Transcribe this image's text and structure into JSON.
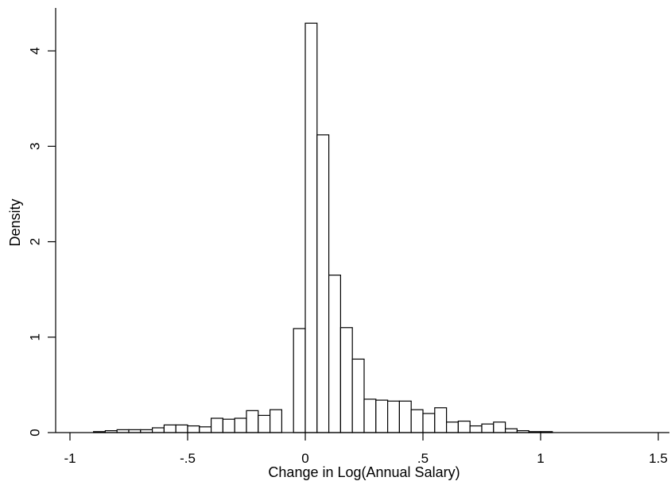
{
  "chart_data": {
    "type": "bar",
    "title": "",
    "xlabel": "Change in Log(Annual Salary)",
    "ylabel": "Density",
    "xlim": [
      -1,
      1.5
    ],
    "ylim": [
      0,
      4.4
    ],
    "grid": false,
    "bin_width": 0.05,
    "x_ticks": [
      {
        "value": -1,
        "label": "-1"
      },
      {
        "value": -0.5,
        "label": "-.5"
      },
      {
        "value": 0,
        "label": "0"
      },
      {
        "value": 0.5,
        "label": ".5"
      },
      {
        "value": 1,
        "label": "1"
      },
      {
        "value": 1.5,
        "label": "1.5"
      }
    ],
    "y_ticks": [
      {
        "value": 0,
        "label": "0"
      },
      {
        "value": 1,
        "label": "1"
      },
      {
        "value": 2,
        "label": "2"
      },
      {
        "value": 3,
        "label": "3"
      },
      {
        "value": 4,
        "label": "4"
      }
    ],
    "bins": [
      {
        "x0": -0.9,
        "x1": -0.85,
        "density": 0.01
      },
      {
        "x0": -0.85,
        "x1": -0.8,
        "density": 0.02
      },
      {
        "x0": -0.8,
        "x1": -0.75,
        "density": 0.03
      },
      {
        "x0": -0.75,
        "x1": -0.7,
        "density": 0.03
      },
      {
        "x0": -0.7,
        "x1": -0.65,
        "density": 0.03
      },
      {
        "x0": -0.65,
        "x1": -0.6,
        "density": 0.05
      },
      {
        "x0": -0.6,
        "x1": -0.55,
        "density": 0.08
      },
      {
        "x0": -0.55,
        "x1": -0.5,
        "density": 0.08
      },
      {
        "x0": -0.5,
        "x1": -0.45,
        "density": 0.07
      },
      {
        "x0": -0.45,
        "x1": -0.4,
        "density": 0.06
      },
      {
        "x0": -0.4,
        "x1": -0.35,
        "density": 0.15
      },
      {
        "x0": -0.35,
        "x1": -0.3,
        "density": 0.14
      },
      {
        "x0": -0.3,
        "x1": -0.25,
        "density": 0.15
      },
      {
        "x0": -0.25,
        "x1": -0.2,
        "density": 0.23
      },
      {
        "x0": -0.2,
        "x1": -0.15,
        "density": 0.18
      },
      {
        "x0": -0.15,
        "x1": -0.1,
        "density": 0.24
      },
      {
        "x0": -0.05,
        "x1": 0.0,
        "density": 1.09
      },
      {
        "x0": 0.0,
        "x1": 0.05,
        "density": 4.29
      },
      {
        "x0": 0.05,
        "x1": 0.1,
        "density": 3.12
      },
      {
        "x0": 0.1,
        "x1": 0.15,
        "density": 1.65
      },
      {
        "x0": 0.15,
        "x1": 0.2,
        "density": 1.1
      },
      {
        "x0": 0.2,
        "x1": 0.25,
        "density": 0.77
      },
      {
        "x0": 0.25,
        "x1": 0.3,
        "density": 0.35
      },
      {
        "x0": 0.3,
        "x1": 0.35,
        "density": 0.34
      },
      {
        "x0": 0.35,
        "x1": 0.4,
        "density": 0.33
      },
      {
        "x0": 0.4,
        "x1": 0.45,
        "density": 0.33
      },
      {
        "x0": 0.45,
        "x1": 0.5,
        "density": 0.24
      },
      {
        "x0": 0.5,
        "x1": 0.55,
        "density": 0.2
      },
      {
        "x0": 0.55,
        "x1": 0.6,
        "density": 0.26
      },
      {
        "x0": 0.6,
        "x1": 0.65,
        "density": 0.11
      },
      {
        "x0": 0.65,
        "x1": 0.7,
        "density": 0.12
      },
      {
        "x0": 0.7,
        "x1": 0.75,
        "density": 0.07
      },
      {
        "x0": 0.75,
        "x1": 0.8,
        "density": 0.09
      },
      {
        "x0": 0.8,
        "x1": 0.85,
        "density": 0.11
      },
      {
        "x0": 0.85,
        "x1": 0.9,
        "density": 0.04
      },
      {
        "x0": 0.9,
        "x1": 0.95,
        "density": 0.02
      },
      {
        "x0": 0.95,
        "x1": 1.0,
        "density": 0.01
      },
      {
        "x0": 1.0,
        "x1": 1.05,
        "density": 0.01
      }
    ]
  }
}
